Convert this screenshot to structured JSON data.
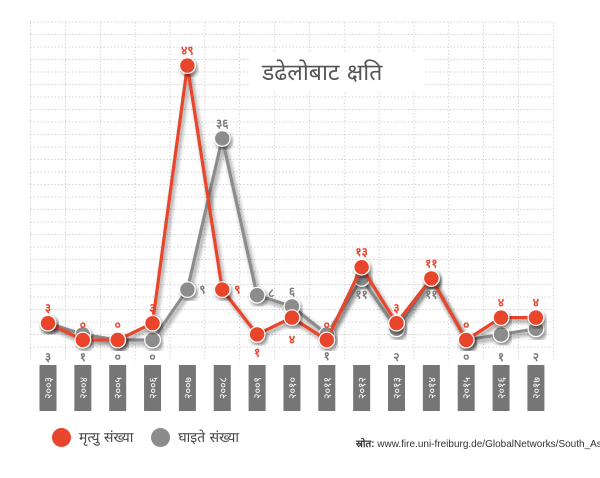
{
  "chart_data": {
    "type": "line",
    "title": "डढेलोबाट क्षति",
    "categories": [
      "२००३",
      "२००४",
      "२००५",
      "२००६",
      "२००७",
      "२००८",
      "२००९",
      "२०१०",
      "२०११",
      "२०१२",
      "२०१३",
      "२०१४",
      "२०१५",
      "२०१६",
      "२०१७"
    ],
    "series": [
      {
        "name": "मृत्यु संख्या",
        "color": "#e8452c",
        "values": [
          3,
          0,
          0,
          3,
          49,
          9,
          1,
          4,
          0,
          13,
          3,
          11,
          0,
          4,
          4
        ],
        "labels": [
          "३",
          "०",
          "०",
          "३",
          "४९",
          "९",
          "१",
          "४",
          "०",
          "१३",
          "३",
          "११",
          "०",
          "४",
          "४"
        ]
      },
      {
        "name": "घाइते संख्या",
        "color": "#8c8c8c",
        "values": [
          3,
          1,
          0,
          0,
          9,
          36,
          8,
          6,
          1,
          11,
          2,
          11,
          0,
          1,
          2
        ],
        "labels": [
          "३",
          "१",
          "०",
          "०",
          "९",
          "३६",
          "८",
          "६",
          "१",
          "११",
          "२",
          "११",
          "०",
          "१",
          "२"
        ]
      }
    ],
    "ylim": [
      0,
      50
    ],
    "grid": true,
    "legend_position": "bottom-left"
  },
  "legend": {
    "deaths": "मृत्यु संख्या",
    "injured": "घाइते संख्या"
  },
  "source": {
    "label": "स्रोत:",
    "url": "www.fire.uni-freiburg.de/GlobalNetworks/South_Asia"
  }
}
